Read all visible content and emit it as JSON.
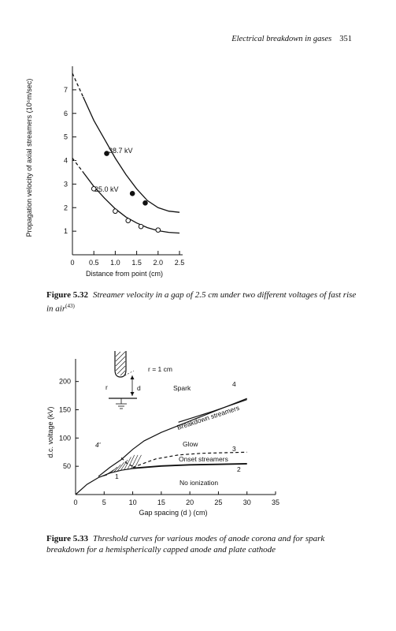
{
  "header": {
    "title": "Electrical breakdown in gases",
    "page_number": "351"
  },
  "figure1": {
    "caption_label": "Figure 5.32",
    "caption_text": "Streamer velocity in a gap of 2.5 cm under two different voltages of fast rise in air",
    "caption_ref": "(43)"
  },
  "figure2": {
    "caption_label": "Figure 5.33",
    "caption_text": "Threshold curves for various modes of anode corona and for spark breakdown for a hemispherically capped anode and plate cathode",
    "inset_radius_label": "r = 1 cm",
    "inset_r": "r",
    "inset_d": "d"
  },
  "chart_data": [
    {
      "type": "line",
      "xlabel": "Distance from point (cm)",
      "ylabel": "Propagation velocity of axial streamers (10⁶m/sec)",
      "xlim": [
        0,
        2.5
      ],
      "ylim": [
        0,
        8
      ],
      "x_ticks": [
        "0",
        "0.5",
        "1.0",
        "1.5",
        "2.0",
        "2.5"
      ],
      "y_ticks": [
        "1",
        "2",
        "3",
        "4",
        "5",
        "6",
        "7"
      ],
      "series": [
        {
          "name": "38.7 kV",
          "marker": "filled-circle",
          "color": "#111111",
          "curve_x": [
            0,
            0.25,
            0.5,
            0.75,
            1.0,
            1.25,
            1.5,
            1.75,
            2.0,
            2.25,
            2.5
          ],
          "curve_y": [
            7.7,
            6.7,
            5.7,
            4.9,
            4.1,
            3.4,
            2.8,
            2.3,
            2.0,
            1.85,
            1.8
          ],
          "points_x": [
            0.8,
            1.4,
            1.7
          ],
          "points_y": [
            4.3,
            2.6,
            2.2
          ]
        },
        {
          "name": "25.0 kV",
          "marker": "open-circle",
          "color": "#111111",
          "curve_x": [
            0,
            0.25,
            0.5,
            0.75,
            1.0,
            1.25,
            1.5,
            1.75,
            2.0,
            2.25,
            2.5
          ],
          "curve_y": [
            4.1,
            3.5,
            2.9,
            2.4,
            1.95,
            1.6,
            1.35,
            1.15,
            1.02,
            0.95,
            0.92
          ],
          "points_x": [
            0.5,
            1.0,
            1.3,
            1.6,
            2.0
          ],
          "points_y": [
            2.8,
            1.85,
            1.45,
            1.2,
            1.05
          ]
        }
      ]
    },
    {
      "type": "line",
      "xlabel": "Gap spacing (d ) (cm)",
      "ylabel": "d.c. voltage (kV)",
      "xlim": [
        0,
        35
      ],
      "ylim": [
        0,
        240
      ],
      "x_ticks": [
        "0",
        "5",
        "10",
        "15",
        "20",
        "25",
        "30",
        "35"
      ],
      "y_ticks": [
        "50",
        "100",
        "150",
        "200"
      ],
      "region_labels": [
        "Spark",
        "Breakdown streamers",
        "Glow",
        "Onset streamers",
        "No ionization"
      ],
      "series": [
        {
          "name": "1",
          "style": "solid",
          "x": [
            0,
            2,
            4,
            6,
            8,
            10,
            15,
            20,
            25,
            30
          ],
          "y": [
            0,
            18,
            30,
            38,
            43,
            46,
            50,
            52,
            53,
            54
          ]
        },
        {
          "name": "2",
          "style": "solid",
          "x": [
            10,
            15,
            20,
            25,
            30
          ],
          "y": [
            47,
            51,
            53,
            54,
            55
          ]
        },
        {
          "name": "3",
          "style": "dashed",
          "x": [
            10,
            14,
            18,
            22,
            26,
            30
          ],
          "y": [
            48,
            63,
            70,
            73,
            74,
            75
          ]
        },
        {
          "name": "4",
          "style": "solid",
          "x": [
            4,
            6,
            8,
            10,
            12,
            15,
            20,
            25,
            30
          ],
          "y": [
            32,
            48,
            62,
            80,
            95,
            110,
            130,
            150,
            170
          ]
        },
        {
          "name": "4'",
          "style": "dashed",
          "x": [
            8,
            9,
            10,
            10.5
          ],
          "y": [
            65,
            55,
            50,
            47
          ]
        },
        {
          "name": "Breakdown streamers",
          "style": "solid",
          "x": [
            18,
            24,
            30
          ],
          "y": [
            128,
            147,
            168
          ]
        }
      ]
    }
  ]
}
